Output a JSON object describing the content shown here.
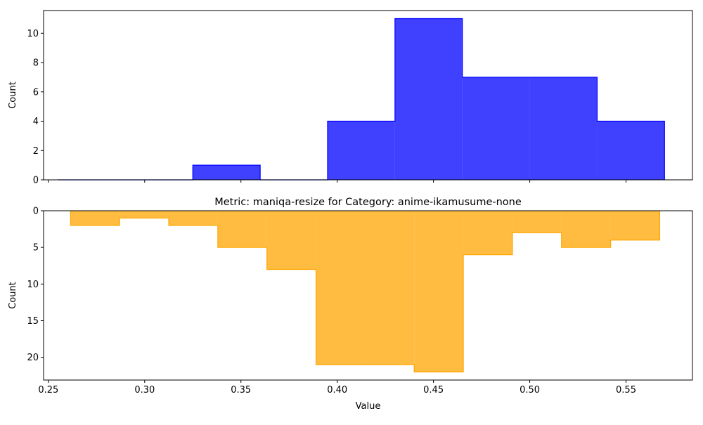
{
  "chart_data": [
    {
      "type": "step-histogram",
      "title": "",
      "xlabel": "",
      "ylabel": "Count",
      "xlim": [
        0.2475,
        0.5845
      ],
      "ylim": [
        0,
        11.55
      ],
      "y_inverted": false,
      "yticks": [
        "0",
        "2",
        "4",
        "6",
        "8",
        "10"
      ],
      "color": "#0000ff",
      "bins": [
        {
          "x0": 0.255,
          "x1": 0.29,
          "value": 0
        },
        {
          "x0": 0.29,
          "x1": 0.325,
          "value": 0
        },
        {
          "x0": 0.325,
          "x1": 0.36,
          "value": 1
        },
        {
          "x0": 0.36,
          "x1": 0.395,
          "value": 0
        },
        {
          "x0": 0.395,
          "x1": 0.43,
          "value": 4
        },
        {
          "x0": 0.43,
          "x1": 0.465,
          "value": 11
        },
        {
          "x0": 0.465,
          "x1": 0.5,
          "value": 7
        },
        {
          "x0": 0.5,
          "x1": 0.535,
          "value": 7
        },
        {
          "x0": 0.535,
          "x1": 0.57,
          "value": 4
        }
      ]
    },
    {
      "type": "step-histogram",
      "title": "Metric: maniqa-resize for Category: anime-ikamusume-none",
      "xlabel": "Value",
      "ylabel": "Count",
      "xlim": [
        0.2475,
        0.5845
      ],
      "ylim": [
        0,
        23.1
      ],
      "y_inverted": true,
      "yticks": [
        "0",
        "5",
        "10",
        "15",
        "20"
      ],
      "xticks": [
        "0.25",
        "0.30",
        "0.35",
        "0.40",
        "0.45",
        "0.50",
        "0.55"
      ],
      "color": "#ffa500",
      "bins": [
        {
          "x0": 0.2615,
          "x1": 0.287,
          "value": 2
        },
        {
          "x0": 0.287,
          "x1": 0.3125,
          "value": 1
        },
        {
          "x0": 0.3125,
          "x1": 0.338,
          "value": 2
        },
        {
          "x0": 0.338,
          "x1": 0.3635,
          "value": 5
        },
        {
          "x0": 0.3635,
          "x1": 0.389,
          "value": 8
        },
        {
          "x0": 0.389,
          "x1": 0.4145,
          "value": 21
        },
        {
          "x0": 0.4145,
          "x1": 0.44,
          "value": 21
        },
        {
          "x0": 0.44,
          "x1": 0.4655,
          "value": 22
        },
        {
          "x0": 0.4655,
          "x1": 0.491,
          "value": 6
        },
        {
          "x0": 0.491,
          "x1": 0.5165,
          "value": 3
        },
        {
          "x0": 0.5165,
          "x1": 0.542,
          "value": 5
        },
        {
          "x0": 0.542,
          "x1": 0.5675,
          "value": 4
        }
      ]
    }
  ]
}
